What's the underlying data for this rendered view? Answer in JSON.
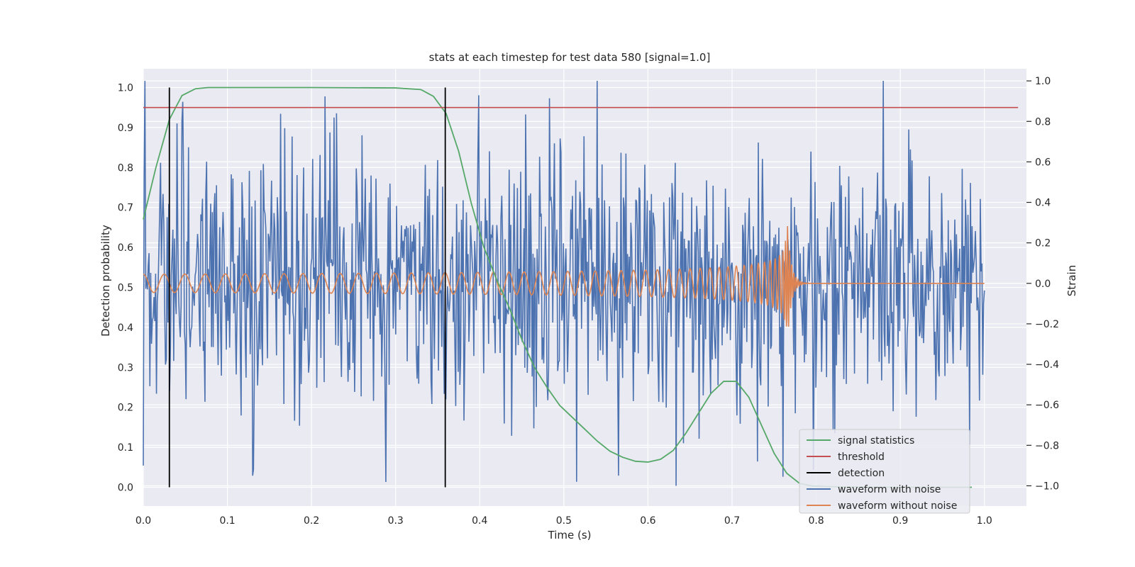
{
  "chart_data": {
    "type": "line",
    "title": "stats at each timestep for test data 580 [signal=1.0]",
    "xlabel": "Time (s)",
    "ylabel": "Detection probability",
    "y2label": "Strain",
    "xlim": [
      0.0,
      1.05
    ],
    "ylim": [
      -0.047,
      1.047
    ],
    "y2lim": [
      -1.1,
      1.06
    ],
    "xticks": [
      "0.0",
      "0.1",
      "0.2",
      "0.3",
      "0.4",
      "0.5",
      "0.6",
      "0.7",
      "0.8",
      "0.9",
      "1.0"
    ],
    "yticks": [
      "0.0",
      "0.1",
      "0.2",
      "0.3",
      "0.4",
      "0.5",
      "0.6",
      "0.7",
      "0.8",
      "0.9",
      "1.0"
    ],
    "y2ticks": [
      "−1.0",
      "−0.8",
      "−0.6",
      "−0.4",
      "−0.2",
      "0.0",
      "0.2",
      "0.4",
      "0.6",
      "0.8",
      "1.0"
    ],
    "grid": true,
    "legend_position": "lower-right",
    "colors": {
      "signal_statistics": "#55a868",
      "threshold": "#c44e52",
      "detection": "#000000",
      "waveform_with_noise": "#4c72b0",
      "waveform_without_noise": "#dd8452",
      "plot_background": "#eaeaf2",
      "grid": "#ffffff"
    },
    "series": [
      {
        "name": "signal statistics",
        "axis": "left",
        "x": [
          0.0,
          0.015,
          0.031,
          0.046,
          0.062,
          0.077,
          0.093,
          0.108,
          0.124,
          0.2,
          0.3,
          0.33,
          0.345,
          0.36,
          0.375,
          0.39,
          0.405,
          0.42,
          0.435,
          0.45,
          0.465,
          0.48,
          0.495,
          0.51,
          0.525,
          0.54,
          0.555,
          0.57,
          0.585,
          0.6,
          0.615,
          0.63,
          0.645,
          0.66,
          0.675,
          0.69,
          0.705,
          0.72,
          0.735,
          0.75,
          0.765,
          0.78,
          0.795,
          0.81,
          0.83,
          0.9,
          0.985
        ],
        "values": [
          0.67,
          0.8,
          0.92,
          0.98,
          0.997,
          1.0,
          1.0,
          1.0,
          1.0,
          1.0,
          0.999,
          0.995,
          0.978,
          0.935,
          0.84,
          0.71,
          0.6,
          0.52,
          0.45,
          0.37,
          0.3,
          0.25,
          0.205,
          0.175,
          0.145,
          0.115,
          0.09,
          0.075,
          0.065,
          0.063,
          0.07,
          0.092,
          0.135,
          0.185,
          0.235,
          0.265,
          0.265,
          0.225,
          0.155,
          0.085,
          0.035,
          0.01,
          0.003,
          0.002,
          0.001,
          0.0,
          0.0
        ]
      },
      {
        "name": "threshold",
        "axis": "left",
        "x": [
          0.0,
          1.04
        ],
        "values": [
          0.95,
          0.95
        ]
      },
      {
        "name": "detection",
        "axis": "left",
        "segments": [
          {
            "x": 0.031,
            "y": [
              0.0,
              1.0
            ]
          },
          {
            "x": 0.359,
            "y": [
              0.0,
              1.0
            ]
          }
        ]
      },
      {
        "name": "waveform with noise",
        "axis": "right",
        "x_range": [
          0.0,
          1.0
        ],
        "amplitude": 0.32,
        "peaks": [
          {
            "x": 0.0,
            "y": -0.9
          },
          {
            "x": 0.04,
            "y": 0.79
          },
          {
            "x": 0.046,
            "y": 0.8
          },
          {
            "x": 0.13,
            "y": -0.95
          },
          {
            "x": 0.23,
            "y": 0.84
          },
          {
            "x": 0.54,
            "y": 1.0
          },
          {
            "x": 0.515,
            "y": -0.98
          },
          {
            "x": 0.565,
            "y": -0.95
          },
          {
            "x": 0.633,
            "y": -1.0
          },
          {
            "x": 0.73,
            "y": -0.88
          },
          {
            "x": 0.82,
            "y": -0.72
          }
        ],
        "values_note_free": true
      },
      {
        "name": "waveform without noise",
        "axis": "right",
        "x_range": [
          0.0,
          1.0
        ],
        "merger_time": 0.765,
        "amplitude_start": 0.045,
        "amplitude_peak": 0.35,
        "ringdown_end": 0.78,
        "cycles_start_freq_hz": 40,
        "cycles_end_freq_hz": 400
      }
    ]
  },
  "legend": {
    "items": [
      {
        "label": "signal statistics",
        "color": "#55a868"
      },
      {
        "label": "threshold",
        "color": "#c44e52"
      },
      {
        "label": "detection",
        "color": "#000000"
      },
      {
        "label": "waveform with noise",
        "color": "#4c72b0"
      },
      {
        "label": "waveform without noise",
        "color": "#dd8452"
      }
    ]
  }
}
